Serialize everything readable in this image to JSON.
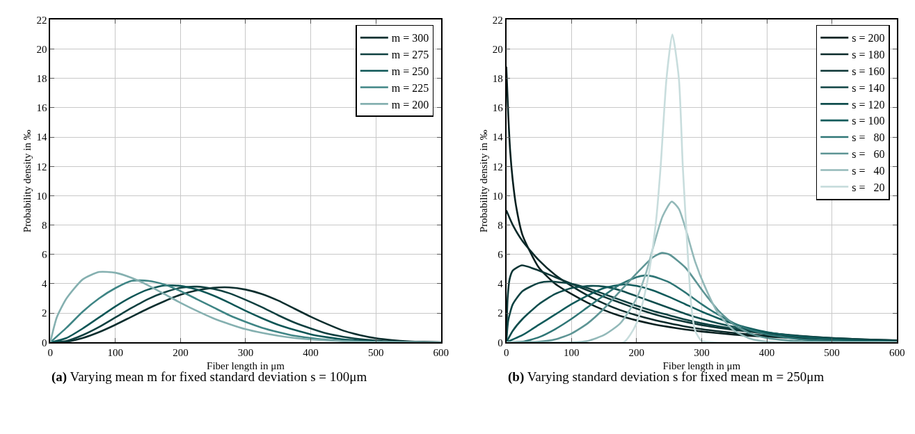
{
  "chart_data": [
    {
      "type": "line",
      "xlabel": "Fiber length in μm",
      "ylabel": "Probability density in ‰",
      "xlim": [
        0,
        600
      ],
      "ylim": [
        0,
        22
      ],
      "xticks": [
        0,
        100,
        200,
        300,
        400,
        500,
        600
      ],
      "yticks": [
        0,
        2,
        4,
        6,
        8,
        10,
        12,
        14,
        16,
        18,
        20,
        22
      ],
      "grid": true,
      "legend": "top right",
      "line_style": "solid",
      "marker": "none",
      "annotations": [
        "(a) Varying mean m for fixed standard deviation s = 100μm"
      ],
      "series": [
        {
          "name": "m = 300",
          "color": "#0b2e2e",
          "x": [
            0,
            25,
            50,
            75,
            100,
            125,
            150,
            175,
            200,
            225,
            250,
            275,
            300,
            325,
            350,
            375,
            400,
            425,
            450,
            475,
            500,
            525,
            550,
            575,
            600
          ],
          "values": [
            0,
            0.05,
            0.3,
            0.7,
            1.2,
            1.75,
            2.3,
            2.8,
            3.25,
            3.55,
            3.72,
            3.75,
            3.6,
            3.3,
            2.85,
            2.3,
            1.75,
            1.25,
            0.8,
            0.5,
            0.28,
            0.15,
            0.07,
            0.03,
            0.01
          ]
        },
        {
          "name": "m = 275",
          "color": "#0e4040",
          "x": [
            0,
            25,
            50,
            75,
            100,
            125,
            150,
            175,
            200,
            225,
            250,
            275,
            300,
            325,
            350,
            375,
            400,
            425,
            450,
            475,
            500,
            525,
            550,
            575,
            600
          ],
          "values": [
            0,
            0.1,
            0.5,
            1.05,
            1.7,
            2.35,
            2.95,
            3.4,
            3.72,
            3.8,
            3.65,
            3.35,
            2.9,
            2.4,
            1.85,
            1.35,
            0.95,
            0.6,
            0.38,
            0.22,
            0.12,
            0.06,
            0.03,
            0.01,
            0
          ]
        },
        {
          "name": "m = 250",
          "color": "#0d5656",
          "x": [
            0,
            25,
            50,
            75,
            100,
            125,
            150,
            175,
            200,
            225,
            250,
            275,
            300,
            325,
            350,
            375,
            400,
            425,
            450,
            475,
            500,
            525,
            550,
            575,
            600
          ],
          "values": [
            0,
            0.3,
            0.95,
            1.7,
            2.45,
            3.1,
            3.6,
            3.88,
            3.85,
            3.6,
            3.2,
            2.7,
            2.15,
            1.65,
            1.2,
            0.85,
            0.55,
            0.35,
            0.2,
            0.12,
            0.06,
            0.03,
            0.01,
            0.01,
            0
          ]
        },
        {
          "name": "m = 225",
          "color": "#3f8585",
          "x": [
            0,
            25,
            50,
            75,
            100,
            125,
            150,
            175,
            200,
            225,
            250,
            275,
            300,
            325,
            350,
            375,
            400,
            425,
            450,
            475,
            500,
            525,
            550,
            575,
            600
          ],
          "values": [
            0,
            1.0,
            2.1,
            3.0,
            3.7,
            4.2,
            4.2,
            3.95,
            3.5,
            2.95,
            2.4,
            1.85,
            1.4,
            1.0,
            0.7,
            0.45,
            0.3,
            0.18,
            0.1,
            0.06,
            0.03,
            0.02,
            0.01,
            0,
            0
          ]
        },
        {
          "name": "m = 200",
          "color": "#85b0b0",
          "x": [
            0,
            10,
            25,
            50,
            75,
            100,
            125,
            150,
            175,
            200,
            225,
            250,
            275,
            300,
            325,
            350,
            375,
            400,
            425,
            450,
            475,
            500,
            525,
            550,
            575,
            600
          ],
          "values": [
            0,
            1.7,
            3.0,
            4.3,
            4.8,
            4.75,
            4.4,
            3.9,
            3.3,
            2.7,
            2.15,
            1.65,
            1.25,
            0.9,
            0.65,
            0.45,
            0.3,
            0.2,
            0.13,
            0.08,
            0.05,
            0.03,
            0.02,
            0.01,
            0,
            0
          ]
        }
      ]
    },
    {
      "type": "line",
      "xlabel": "Fiber length in μm",
      "ylabel": "Probability density in ‰",
      "xlim": [
        0,
        600
      ],
      "ylim": [
        0,
        22
      ],
      "xticks": [
        0,
        100,
        200,
        300,
        400,
        500,
        600
      ],
      "yticks": [
        0,
        2,
        4,
        6,
        8,
        10,
        12,
        14,
        16,
        18,
        20,
        22
      ],
      "grid": true,
      "legend": "top right",
      "line_style": "solid",
      "marker": "none",
      "annotations": [
        "(b) Varying standard deviation s for fixed mean m = 250μm"
      ],
      "series": [
        {
          "name": "s = 200",
          "color": "#082020",
          "x": [
            0,
            3,
            6,
            10,
            15,
            25,
            50,
            75,
            100,
            125,
            150,
            175,
            200,
            225,
            250,
            275,
            300,
            350,
            400,
            450,
            500,
            550,
            600
          ],
          "values": [
            18.8,
            15.5,
            13,
            11,
            9.3,
            7.3,
            5.1,
            4.0,
            3.3,
            2.7,
            2.2,
            1.8,
            1.5,
            1.25,
            1.05,
            0.88,
            0.74,
            0.53,
            0.39,
            0.28,
            0.21,
            0.15,
            0.11
          ]
        },
        {
          "name": "s = 180",
          "color": "#0a2a2a",
          "x": [
            0,
            10,
            25,
            50,
            75,
            100,
            125,
            150,
            175,
            200,
            225,
            250,
            275,
            300,
            350,
            400,
            450,
            500,
            550,
            600
          ],
          "values": [
            9.0,
            8.0,
            6.9,
            5.6,
            4.6,
            3.85,
            3.2,
            2.65,
            2.2,
            1.85,
            1.55,
            1.3,
            1.08,
            0.9,
            0.64,
            0.46,
            0.33,
            0.24,
            0.17,
            0.12
          ]
        },
        {
          "name": "s = 160",
          "color": "#0c3535",
          "x": [
            0,
            2,
            5,
            10,
            24,
            50,
            75,
            100,
            125,
            150,
            175,
            200,
            225,
            250,
            275,
            300,
            325,
            350,
            375,
            400,
            450,
            500,
            550,
            600
          ],
          "values": [
            0,
            3.0,
            4.3,
            4.9,
            5.25,
            4.9,
            4.45,
            4.0,
            3.55,
            3.1,
            2.7,
            2.3,
            1.95,
            1.65,
            1.4,
            1.18,
            1.0,
            0.85,
            0.72,
            0.6,
            0.42,
            0.29,
            0.2,
            0.14
          ]
        },
        {
          "name": "s = 140",
          "color": "#0e4242",
          "x": [
            0,
            3,
            10,
            25,
            50,
            67,
            100,
            125,
            150,
            175,
            200,
            225,
            250,
            275,
            300,
            325,
            350,
            375,
            400,
            450,
            500,
            550,
            600
          ],
          "values": [
            0,
            1.5,
            2.6,
            3.5,
            4.05,
            4.15,
            4.0,
            3.7,
            3.3,
            2.9,
            2.5,
            2.15,
            1.85,
            1.55,
            1.3,
            1.1,
            0.92,
            0.78,
            0.65,
            0.45,
            0.3,
            0.2,
            0.13
          ]
        },
        {
          "name": "s = 120",
          "color": "#0f4d4d",
          "x": [
            0,
            10,
            25,
            50,
            75,
            100,
            130,
            150,
            175,
            200,
            225,
            250,
            275,
            300,
            325,
            350,
            375,
            400,
            450,
            500,
            550,
            600
          ],
          "values": [
            0,
            0.8,
            1.6,
            2.6,
            3.3,
            3.7,
            3.85,
            3.8,
            3.55,
            3.15,
            2.75,
            2.35,
            1.95,
            1.6,
            1.3,
            1.05,
            0.85,
            0.68,
            0.42,
            0.26,
            0.15,
            0.09
          ]
        },
        {
          "name": "s = 100",
          "color": "#105b5b",
          "x": [
            0,
            25,
            50,
            75,
            100,
            125,
            150,
            180,
            200,
            225,
            250,
            275,
            300,
            325,
            350,
            375,
            400,
            450,
            500,
            550,
            600
          ],
          "values": [
            0,
            0.5,
            1.2,
            1.9,
            2.6,
            3.2,
            3.7,
            3.95,
            3.85,
            3.55,
            3.1,
            2.6,
            2.1,
            1.65,
            1.25,
            0.95,
            0.7,
            0.38,
            0.2,
            0.1,
            0.05
          ]
        },
        {
          "name": "s =   80",
          "color": "#2f7676",
          "x": [
            0,
            25,
            50,
            75,
            100,
            125,
            150,
            175,
            200,
            212,
            225,
            250,
            275,
            300,
            325,
            350,
            375,
            400,
            450,
            500,
            550,
            600
          ],
          "values": [
            0,
            0.05,
            0.35,
            0.9,
            1.6,
            2.4,
            3.2,
            3.95,
            4.45,
            4.56,
            4.5,
            4.1,
            3.4,
            2.6,
            1.9,
            1.3,
            0.85,
            0.55,
            0.22,
            0.09,
            0.03,
            0.01
          ]
        },
        {
          "name": "s =   60",
          "color": "#5e9595",
          "x": [
            0,
            50,
            75,
            100,
            125,
            150,
            175,
            200,
            225,
            239,
            250,
            275,
            300,
            325,
            350,
            375,
            400,
            450,
            500,
            600
          ],
          "values": [
            0,
            0.05,
            0.2,
            0.6,
            1.3,
            2.3,
            3.5,
            4.7,
            5.8,
            6.1,
            6.0,
            5.1,
            3.6,
            2.2,
            1.2,
            0.6,
            0.3,
            0.08,
            0.02,
            0
          ]
        },
        {
          "name": "s =   40",
          "color": "#93b9b9",
          "x": [
            0,
            100,
            125,
            150,
            175,
            200,
            215,
            225,
            240,
            254,
            265,
            275,
            290,
            305,
            325,
            350,
            375,
            400,
            425,
            600
          ],
          "values": [
            0,
            0,
            0.1,
            0.5,
            1.3,
            3.0,
            4.8,
            6.4,
            8.6,
            9.6,
            9.1,
            7.8,
            5.5,
            3.8,
            2.0,
            0.8,
            0.25,
            0.05,
            0,
            0
          ]
        },
        {
          "name": "s =   20",
          "color": "#c8dddd",
          "x": [
            0,
            180,
            190,
            200,
            210,
            220,
            230,
            237,
            246,
            255,
            265,
            271,
            278,
            284,
            290,
            300,
            320,
            600
          ],
          "values": [
            0,
            0,
            0.5,
            1.3,
            2.8,
            5,
            8.3,
            12,
            18,
            21,
            18,
            12,
            6.5,
            2.5,
            0.8,
            0.1,
            0,
            0
          ]
        }
      ]
    }
  ]
}
